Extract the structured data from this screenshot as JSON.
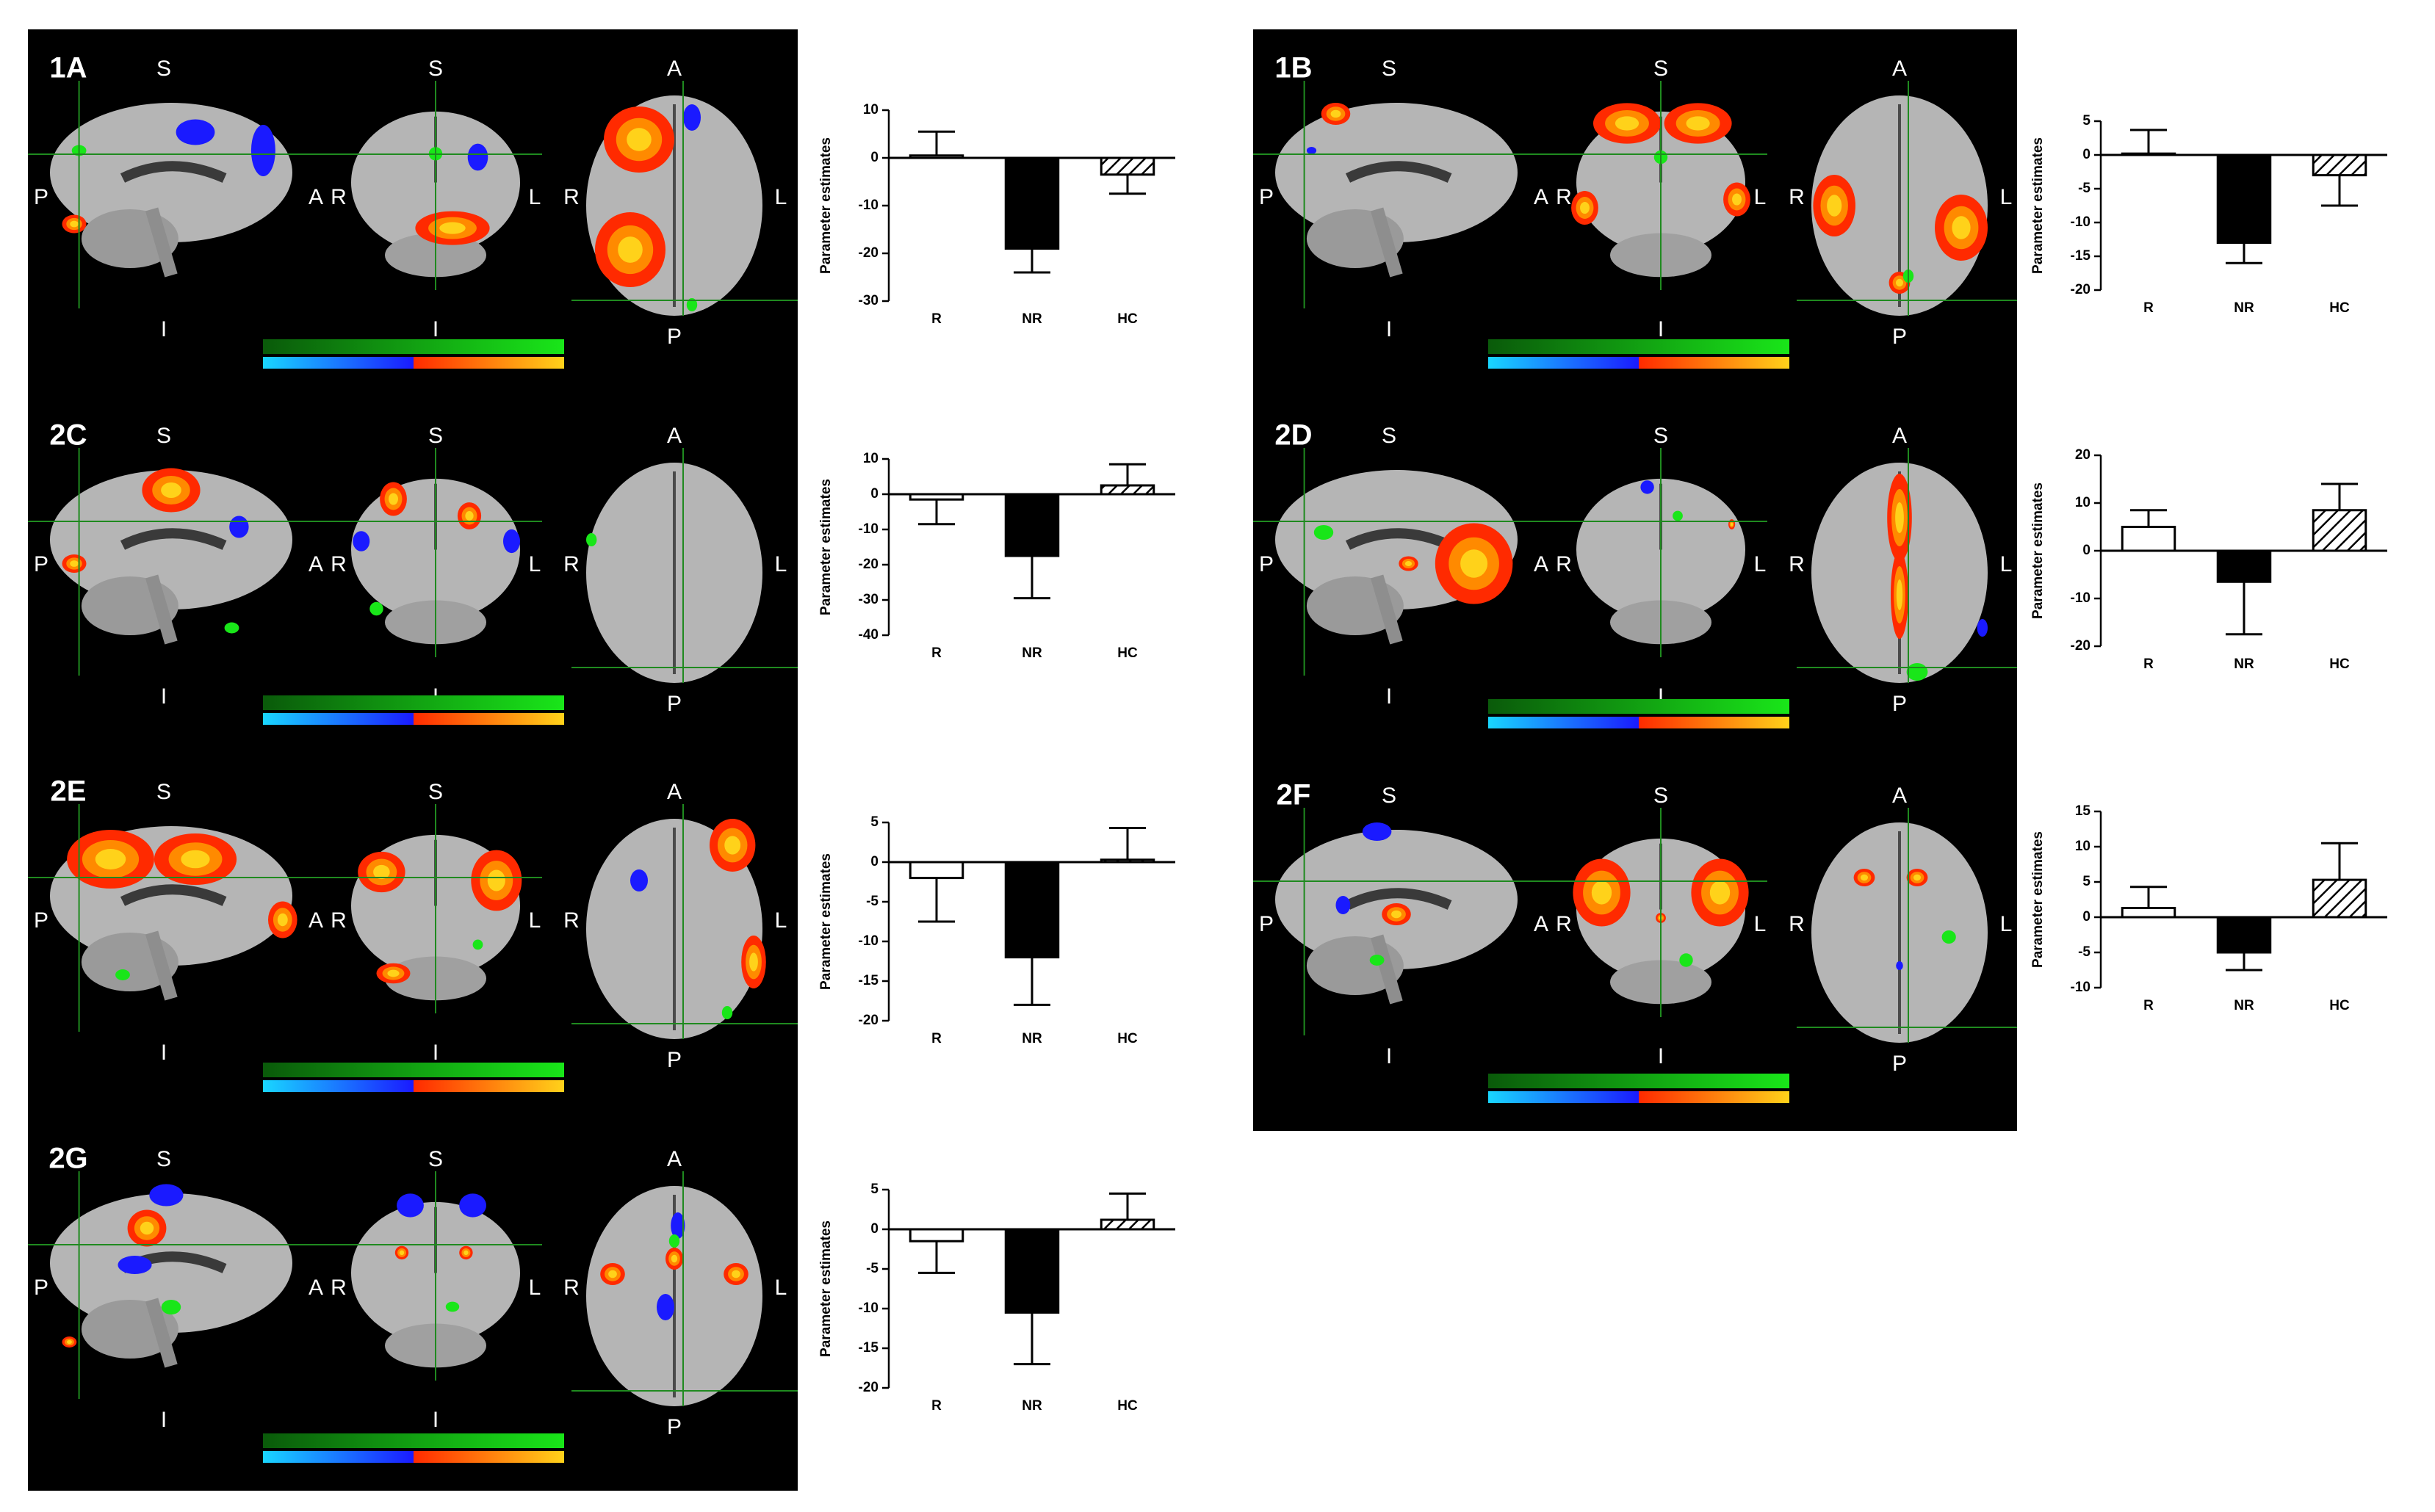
{
  "figure": {
    "panels": [
      {
        "id": "1A",
        "orient": {
          "s1": "S",
          "i1": "I",
          "p1": "P",
          "a1": "A",
          "s2": "S",
          "i2": "I",
          "r2": "R",
          "l2": "L",
          "a3": "A",
          "p3": "P",
          "r3": "R",
          "l3": "L"
        }
      },
      {
        "id": "2C",
        "orient": {
          "s1": "S",
          "i1": "I",
          "p1": "P",
          "a1": "A",
          "s2": "S",
          "i2": "I",
          "r2": "R",
          "l2": "L",
          "a3": "A",
          "p3": "P",
          "r3": "R",
          "l3": "L"
        }
      },
      {
        "id": "2E",
        "orient": {
          "s1": "S",
          "i1": "I",
          "p1": "P",
          "a1": "A",
          "s2": "S",
          "i2": "I",
          "r2": "R",
          "l2": "L",
          "a3": "A",
          "p3": "P",
          "r3": "R",
          "l3": "L"
        }
      },
      {
        "id": "2G",
        "orient": {
          "s1": "S",
          "i1": "I",
          "p1": "P",
          "a1": "A",
          "s2": "S",
          "i2": "I",
          "r2": "R",
          "l2": "L",
          "a3": "A",
          "p3": "P",
          "r3": "R",
          "l3": "L"
        }
      },
      {
        "id": "1B",
        "orient": {
          "s1": "S",
          "i1": "I",
          "p1": "P",
          "a1": "A",
          "s2": "S",
          "i2": "I",
          "r2": "R",
          "l2": "L",
          "a3": "A",
          "p3": "P",
          "r3": "R",
          "l3": "L"
        }
      },
      {
        "id": "2D",
        "orient": {
          "s1": "S",
          "i1": "I",
          "p1": "P",
          "a1": "A",
          "s2": "S",
          "i2": "I",
          "r2": "R",
          "l2": "L",
          "a3": "A",
          "p3": "P",
          "r3": "R",
          "l3": "L"
        }
      },
      {
        "id": "2F",
        "orient": {
          "s1": "S",
          "i1": "I",
          "p1": "P",
          "a1": "A",
          "s2": "S",
          "i2": "I",
          "r2": "R",
          "l2": "L",
          "a3": "A",
          "p3": "P",
          "r3": "R",
          "l3": "L"
        }
      }
    ],
    "colors": {
      "hot_low": "#ff2a00",
      "hot_high": "#ffd21a",
      "cool_low": "#1a1aff",
      "cool_high": "#19d6ff",
      "green": "#19e619",
      "brain": "#b5b5b5"
    }
  },
  "chart_data": [
    {
      "type": "bar",
      "panel": "1A",
      "categories": [
        "R",
        "NR",
        "HC"
      ],
      "values": [
        0.5,
        -19,
        -3.5
      ],
      "errors": [
        5,
        5,
        4
      ],
      "ylabel": "Parameter estimates",
      "ylim": [
        -30,
        10
      ],
      "yticks": [
        -30,
        -20,
        -10,
        0,
        10
      ],
      "ytick_labels": [
        "-30",
        "-20",
        "-10",
        "0",
        "10"
      ]
    },
    {
      "type": "bar",
      "panel": "2C",
      "categories": [
        "R",
        "NR",
        "HC"
      ],
      "values": [
        -1.5,
        -17.5,
        2.5
      ],
      "errors": [
        7,
        12,
        6
      ],
      "ylabel": "Parameter estimates",
      "ylim": [
        -40,
        10
      ],
      "yticks": [
        -40,
        -30,
        -20,
        -10,
        0,
        10
      ],
      "ytick_labels": [
        "-40",
        "-30",
        "-20",
        "-10",
        "0",
        "10"
      ]
    },
    {
      "type": "bar",
      "panel": "2E",
      "categories": [
        "R",
        "NR",
        "HC"
      ],
      "values": [
        -2,
        -12,
        0.3
      ],
      "errors": [
        5.5,
        6,
        4
      ],
      "ylabel": "Parameter estimates",
      "ylim": [
        -20,
        5
      ],
      "yticks": [
        -20,
        -15,
        -10,
        -5,
        0,
        5
      ],
      "ytick_labels": [
        "-20",
        "-15",
        "-10",
        "-5",
        "0",
        "5"
      ]
    },
    {
      "type": "bar",
      "panel": "2G",
      "categories": [
        "R",
        "NR",
        "HC"
      ],
      "values": [
        -1.5,
        -10.5,
        1.2
      ],
      "errors": [
        4,
        6.5,
        3.3
      ],
      "ylabel": "Parameter estimates",
      "ylim": [
        -20,
        5
      ],
      "yticks": [
        -20,
        -15,
        -10,
        -5,
        0,
        5
      ],
      "ytick_labels": [
        "-20",
        "-15",
        "-10",
        "-5",
        "0",
        "5"
      ]
    },
    {
      "type": "bar",
      "panel": "1B",
      "categories": [
        "R",
        "NR",
        "HC"
      ],
      "values": [
        0.2,
        -13,
        -3
      ],
      "errors": [
        3.5,
        3,
        4.5
      ],
      "ylabel": "Parameter estimates",
      "ylim": [
        -20,
        5
      ],
      "yticks": [
        -20,
        -15,
        -10,
        -5,
        0,
        5
      ],
      "ytick_labels": [
        "-20",
        "-15",
        "-10",
        "-5",
        "0",
        "5"
      ]
    },
    {
      "type": "bar",
      "panel": "2D",
      "categories": [
        "R",
        "NR",
        "HC"
      ],
      "values": [
        5,
        -6.5,
        8.5
      ],
      "errors": [
        3.5,
        11,
        5.5
      ],
      "ylabel": "Parameter estimates",
      "ylim": [
        -20,
        20
      ],
      "yticks": [
        -20,
        -10,
        0,
        10,
        20
      ],
      "ytick_labels": [
        "-20",
        "-10",
        "0",
        "10",
        "20"
      ]
    },
    {
      "type": "bar",
      "panel": "2F",
      "categories": [
        "R",
        "NR",
        "HC"
      ],
      "values": [
        1.3,
        -5,
        5.3
      ],
      "errors": [
        3,
        2.5,
        5.2
      ],
      "ylabel": "Parameter estimates",
      "ylim": [
        -10,
        15
      ],
      "yticks": [
        -10,
        -5,
        0,
        5,
        10,
        15
      ],
      "ytick_labels": [
        "-10",
        "-5",
        "0",
        "5",
        "10",
        "15"
      ]
    }
  ]
}
